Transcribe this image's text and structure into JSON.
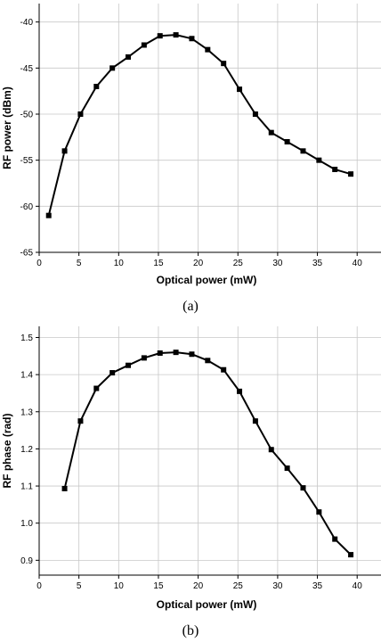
{
  "chart_data": [
    {
      "type": "line",
      "caption": "(a)",
      "xlabel": "Optical power (mW)",
      "ylabel": "RF power (dBm)",
      "xlim": [
        0,
        43
      ],
      "ylim": [
        -65,
        -38
      ],
      "x_ticks": [
        0,
        5,
        10,
        15,
        20,
        25,
        30,
        35,
        40
      ],
      "y_ticks": [
        -65,
        -60,
        -55,
        -50,
        -45,
        -40
      ],
      "x_tick_labels": [
        "0",
        "5",
        "10",
        "15",
        "20",
        "25",
        "30",
        "35",
        "40"
      ],
      "y_tick_labels": [
        "-65",
        "-60",
        "-55",
        "-50",
        "-45",
        "-40"
      ],
      "grid": true,
      "marker": "square",
      "series": [
        {
          "x": [
            1.2,
            3.2,
            5.2,
            7.2,
            9.2,
            11.2,
            13.2,
            15.2,
            17.2,
            19.2,
            21.2,
            23.2,
            25.2,
            27.2,
            29.2,
            31.2,
            33.2,
            35.2,
            37.2,
            39.2
          ],
          "y": [
            -61,
            -54,
            -50,
            -47,
            -45,
            -43.8,
            -42.5,
            -41.5,
            -41.4,
            -41.8,
            -43,
            -44.5,
            -47.3,
            -50,
            -52,
            -53,
            -54,
            -55,
            -56,
            -56.5
          ]
        }
      ]
    },
    {
      "type": "line",
      "caption": "(b)",
      "xlabel": "Optical power (mW)",
      "ylabel": "RF phase (rad)",
      "xlim": [
        0,
        43
      ],
      "ylim": [
        0.86,
        1.53
      ],
      "x_ticks": [
        0,
        5,
        10,
        15,
        20,
        25,
        30,
        35,
        40
      ],
      "y_ticks": [
        0.9,
        1.0,
        1.1,
        1.2,
        1.3,
        1.4,
        1.5
      ],
      "x_tick_labels": [
        "0",
        "5",
        "10",
        "15",
        "20",
        "25",
        "30",
        "35",
        "40"
      ],
      "y_tick_labels": [
        "0.9",
        "1.0",
        "1.1",
        "1.2",
        "1.3",
        "1.4",
        "1.5"
      ],
      "grid": true,
      "marker": "square",
      "series": [
        {
          "x": [
            3.2,
            5.2,
            7.2,
            9.2,
            11.2,
            13.2,
            15.2,
            17.2,
            19.2,
            21.2,
            23.2,
            25.2,
            27.2,
            29.2,
            31.2,
            33.2,
            35.2,
            37.2,
            39.2
          ],
          "y": [
            1.093,
            1.275,
            1.363,
            1.405,
            1.425,
            1.445,
            1.458,
            1.46,
            1.455,
            1.438,
            1.413,
            1.355,
            1.275,
            1.198,
            1.148,
            1.095,
            1.03,
            0.957,
            0.915
          ]
        }
      ]
    }
  ]
}
